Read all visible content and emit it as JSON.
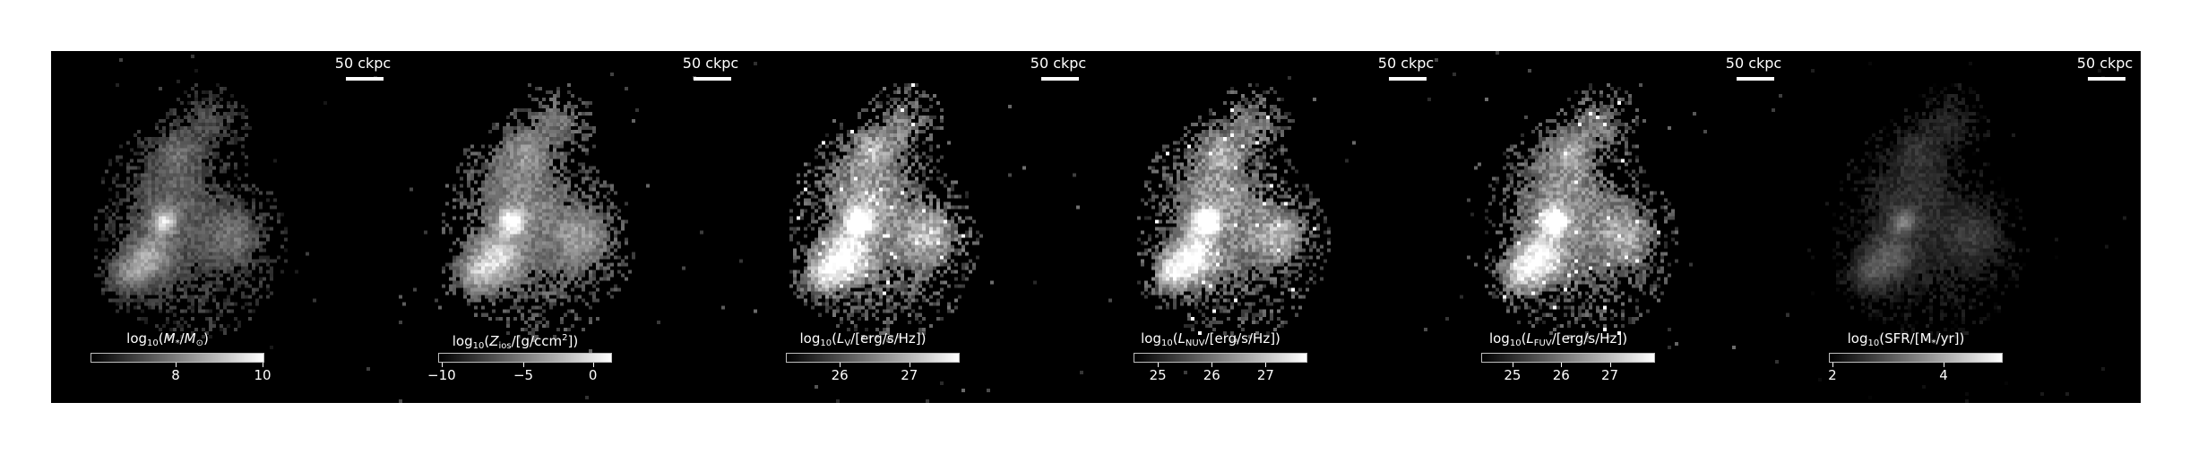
{
  "panels": [
    {
      "scalebar": "50 ckpc",
      "colorbar": {
        "quantity": "M",
        "star": "*",
        "slash": "/",
        "quantity2": "M",
        "sub2": "⊙",
        "close": ")",
        "prefix": "log",
        "base": "10",
        "open": "("
      },
      "ticks": [
        {
          "label": "8",
          "frac": 0.49
        },
        {
          "label": "10",
          "frac": 0.99
        }
      ],
      "tone": {
        "gain": 0.55,
        "background": 0.08
      }
    },
    {
      "scalebar": "50 ckpc",
      "colorbar": {
        "prefix": "log",
        "base": "10",
        "open": "(",
        "quantity": "Z",
        "sub": "ios",
        "unit": "/[g/ccm",
        "sup": "2",
        "close": "])"
      },
      "ticks": [
        {
          "label": "−10",
          "frac": 0.02
        },
        {
          "label": "−5",
          "frac": 0.49
        },
        {
          "label": "0",
          "frac": 0.89
        }
      ],
      "tone": {
        "gain": 0.65,
        "background": 0.18
      }
    },
    {
      "scalebar": "50 ckpc",
      "colorbar": {
        "prefix": "log",
        "base": "10",
        "open": "(",
        "quantity": "L",
        "sub": "V",
        "unit": "/[erg/s/Hz])"
      },
      "ticks": [
        {
          "label": "26",
          "frac": 0.31
        },
        {
          "label": "27",
          "frac": 0.71
        }
      ],
      "tone": {
        "gain": 0.95,
        "background": 0.12
      }
    },
    {
      "scalebar": "50 ckpc",
      "colorbar": {
        "prefix": "log",
        "base": "10",
        "open": "(",
        "quantity": "L",
        "sub": "NUV",
        "unit": "/[erg/s/Hz])"
      },
      "ticks": [
        {
          "label": "25",
          "frac": 0.14
        },
        {
          "label": "26",
          "frac": 0.45
        },
        {
          "label": "27",
          "frac": 0.76
        }
      ],
      "tone": {
        "gain": 0.9,
        "background": 0.12
      }
    },
    {
      "scalebar": "50 ckpc",
      "colorbar": {
        "prefix": "log",
        "base": "10",
        "open": "(",
        "quantity": "L",
        "sub": "FUV",
        "unit": "/[erg/s/Hz])"
      },
      "ticks": [
        {
          "label": "25",
          "frac": 0.18
        },
        {
          "label": "26",
          "frac": 0.46
        },
        {
          "label": "27",
          "frac": 0.74
        }
      ],
      "tone": {
        "gain": 0.88,
        "background": 0.12
      }
    },
    {
      "scalebar": "50 ckpc",
      "colorbar": {
        "prefix": "log",
        "base": "10",
        "open": "(SFR/[M",
        "star": "*",
        "unit": "/yr])"
      },
      "ticks": [
        {
          "label": "2",
          "frac": 0.02
        },
        {
          "label": "4",
          "frac": 0.66
        }
      ],
      "tone": {
        "gain": 0.35,
        "background": 0.0
      }
    }
  ]
}
